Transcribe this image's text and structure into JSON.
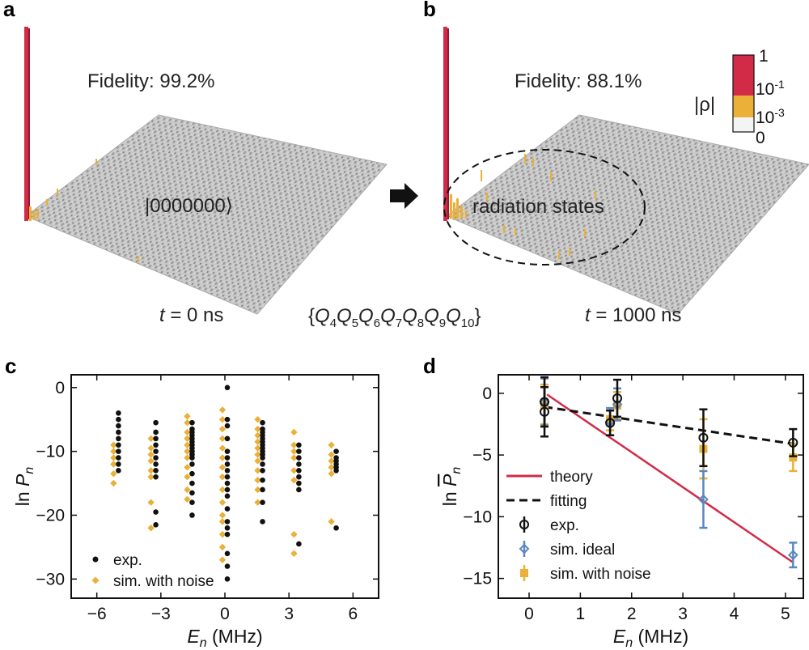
{
  "figure": {
    "panels": {
      "a": {
        "letter": "a",
        "fidelity_label": "Fidelity: 99.2%",
        "state_label": "|0000000⟩",
        "time_symbol": "t",
        "time_value": " = 0 ns"
      },
      "b": {
        "letter": "b",
        "fidelity_label": "Fidelity: 88.1%",
        "region_label": "radiation states",
        "time_symbol": "t",
        "time_value": " = 1000 ns"
      },
      "qubit_set": {
        "open": "{",
        "q": "Q",
        "subscripts": [
          "4",
          "5",
          "6",
          "7",
          "8",
          "9",
          "10"
        ],
        "close": "}"
      },
      "colorbar": {
        "label": "|ρ|",
        "ticks": [
          {
            "base": "1",
            "exp": ""
          },
          {
            "base": "10",
            "exp": "-1"
          },
          {
            "base": "10",
            "exp": "-3"
          },
          {
            "base": "0",
            "exp": ""
          }
        ],
        "colors": [
          "#d22b47",
          "#eab037",
          "#f4f4f4"
        ]
      },
      "c": {
        "letter": "c"
      },
      "d": {
        "letter": "d"
      }
    }
  },
  "chart_data": [
    {
      "panel": "c",
      "type": "scatter",
      "xlabel_main": "E",
      "xlabel_sub": "n",
      "xlabel_unit": " (MHz)",
      "ylabel_main": "ln ",
      "ylabel_var": "P",
      "ylabel_sub": "n",
      "xlim": [
        -7.2,
        7.2
      ],
      "ylim": [
        -33,
        2
      ],
      "xticks": [
        -6,
        -3,
        0,
        3,
        6
      ],
      "yticks": [
        0,
        -10,
        -20,
        -30
      ],
      "grid": false,
      "legend_position": "bottom-left",
      "colors": {
        "exp": "#111111",
        "sim": "#eab037"
      },
      "series": [
        {
          "name": "exp.",
          "marker": "circle",
          "points": [
            {
              "x": 0,
              "values": [
                0,
                -5,
                -6,
                -8,
                -10,
                -11,
                -12,
                -13,
                -14,
                -15,
                -16,
                -17,
                -19,
                -21,
                -22,
                -23,
                -26,
                -28,
                -30
              ]
            },
            {
              "x": 1.65,
              "values": [
                -5.5,
                -6.5,
                -7,
                -7.5,
                -8,
                -8.5,
                -9,
                -9.5,
                -10,
                -10.5,
                -11,
                -12,
                -13,
                -14.5,
                -16,
                -18,
                -21
              ]
            },
            {
              "x": -1.65,
              "values": [
                -5.5,
                -6.5,
                -7,
                -7.5,
                -8,
                -8.5,
                -9,
                -9.5,
                -10,
                -10.5,
                -11,
                -12,
                -13.5,
                -15,
                -16.5,
                -18,
                -20
              ]
            },
            {
              "x": 3.35,
              "values": [
                -9,
                -10,
                -11,
                -12,
                -13,
                -14,
                -15,
                -16,
                -24.5
              ]
            },
            {
              "x": -3.35,
              "values": [
                -5.5,
                -7,
                -8,
                -9,
                -10,
                -11,
                -12,
                -13,
                -14,
                -19.5,
                -21.5
              ]
            },
            {
              "x": 5.1,
              "values": [
                -10,
                -11,
                -11.5,
                -12,
                -12.5,
                -13,
                -22
              ]
            },
            {
              "x": -5.1,
              "values": [
                -4,
                -5,
                -6,
                -7,
                -8,
                -9,
                -10,
                -11,
                -12,
                -13
              ]
            }
          ]
        },
        {
          "name": "sim. with noise",
          "marker": "diamond",
          "points": [
            {
              "x": 0,
              "values": [
                -3.5,
                -5,
                -6.5,
                -8,
                -9.5,
                -11,
                -12.5,
                -14,
                -16,
                -18,
                -20,
                -21,
                -23,
                -25,
                -27
              ]
            },
            {
              "x": 1.65,
              "values": [
                -5,
                -6.5,
                -7.5,
                -8.5,
                -9.5,
                -10.5,
                -11.5,
                -13,
                -14.5,
                -16,
                -18
              ]
            },
            {
              "x": -1.65,
              "values": [
                -4.5,
                -5.5,
                -7,
                -8,
                -9,
                -10,
                -11,
                -12.5,
                -14,
                -16,
                -17.5
              ]
            },
            {
              "x": 3.35,
              "values": [
                -7,
                -9,
                -10,
                -11,
                -13,
                -14.5,
                -23,
                -26
              ]
            },
            {
              "x": -3.35,
              "values": [
                -8,
                -9.5,
                -10.5,
                -11.5,
                -13,
                -14,
                -18,
                -22
              ]
            },
            {
              "x": 5.1,
              "values": [
                -9,
                -10.5,
                -11.5,
                -12.5,
                -13.5,
                -21
              ]
            },
            {
              "x": -5.1,
              "values": [
                -9,
                -10,
                -11,
                -12,
                -13.5,
                -15
              ]
            }
          ]
        }
      ]
    },
    {
      "panel": "d",
      "type": "line",
      "xlabel_main": "E",
      "xlabel_sub": "n",
      "xlabel_unit": " (MHz)",
      "ylabel_main": "ln ",
      "ylabel_var": "P",
      "ylabel_sub": "n",
      "xlim": [
        -0.6,
        5.35
      ],
      "ylim": [
        -16.6,
        1.5
      ],
      "xticks": [
        0,
        1,
        2,
        3,
        4,
        5
      ],
      "yticks": [
        0,
        -5,
        -10,
        -15
      ],
      "grid": false,
      "legend_position": "bottom-left",
      "lines": [
        {
          "name": "theory",
          "style": "solid",
          "color": "#d22b47",
          "x": [
            0.35,
            5.15
          ],
          "y": [
            -0.1,
            -13.7
          ]
        },
        {
          "name": "fitting",
          "style": "dashed",
          "color": "#111111",
          "x": [
            0.3,
            5.15
          ],
          "y": [
            -1.1,
            -4.1
          ]
        }
      ],
      "series": [
        {
          "name": "exp.",
          "marker": "circle",
          "color": "#111111",
          "x": [
            0.3,
            0.3,
            1.58,
            1.72,
            3.4,
            5.15
          ],
          "y": [
            -0.7,
            -1.5,
            -2.4,
            -0.4,
            -3.6,
            -4.0
          ],
          "err": [
            2.0,
            2.0,
            1.0,
            1.5,
            2.3,
            1.1
          ]
        },
        {
          "name": "sim. ideal",
          "marker": "diamond",
          "color": "#5b87bf",
          "x": [
            0.3,
            1.58,
            1.72,
            3.4,
            5.15
          ],
          "y": [
            -0.7,
            -2.3,
            -0.9,
            -8.6,
            -13.1
          ],
          "err": [
            1.9,
            1.1,
            1.3,
            2.3,
            1.0
          ]
        },
        {
          "name": "sim. with noise",
          "marker": "square",
          "color": "#eab037",
          "x": [
            0.3,
            1.58,
            1.72,
            3.4,
            5.15
          ],
          "y": [
            -0.9,
            -2.1,
            -1.0,
            -4.5,
            -5.2
          ],
          "err": [
            1.6,
            0.9,
            1.1,
            2.4,
            1.1
          ]
        }
      ]
    }
  ]
}
